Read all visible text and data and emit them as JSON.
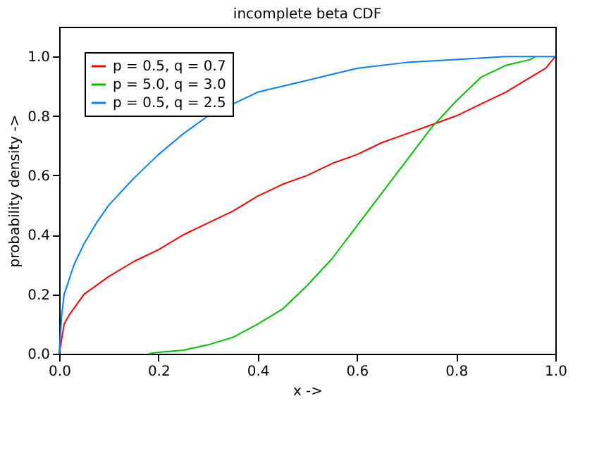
{
  "chart_data": {
    "type": "line",
    "title": "incomplete beta CDF",
    "xlabel": "x ->",
    "ylabel": "probability density ->",
    "xlim": [
      0,
      1
    ],
    "ylim": [
      0,
      1.1
    ],
    "xticks": [
      {
        "value": 0,
        "label": "0.0"
      },
      0.2,
      0.4,
      0.6,
      0.8,
      {
        "value": 1,
        "label": "1.0"
      }
    ],
    "yticks": [
      {
        "value": 0,
        "label": "0.0"
      },
      0.2,
      0.4,
      0.6,
      0.8,
      {
        "value": 1,
        "label": "1.0"
      }
    ],
    "grid": false,
    "legend": "top left",
    "marker": "none",
    "line_style": "solid",
    "series": [
      {
        "name": "p = 0.5, q = 0.7",
        "color": "#ff0000",
        "x": [
          0,
          0.01,
          0.02,
          0.05,
          0.1,
          0.15,
          0.2,
          0.25,
          0.3,
          0.35,
          0.4,
          0.45,
          0.5,
          0.55,
          0.6,
          0.65,
          0.7,
          0.75,
          0.8,
          0.85,
          0.9,
          0.95,
          0.98,
          1
        ],
        "values": [
          0,
          0.1,
          0.13,
          0.2,
          0.26,
          0.31,
          0.35,
          0.4,
          0.44,
          0.48,
          0.53,
          0.57,
          0.6,
          0.64,
          0.67,
          0.71,
          0.74,
          0.77,
          0.8,
          0.84,
          0.88,
          0.93,
          0.96,
          1
        ]
      },
      {
        "name": "p = 5.0, q = 3.0",
        "color": "#00c000",
        "x": [
          0.18,
          0.2,
          0.25,
          0.3,
          0.35,
          0.4,
          0.45,
          0.5,
          0.55,
          0.6,
          0.65,
          0.7,
          0.75,
          0.8,
          0.85,
          0.9,
          0.95,
          0.96
        ],
        "values": [
          0,
          0.005,
          0.012,
          0.03,
          0.055,
          0.1,
          0.15,
          0.23,
          0.32,
          0.43,
          0.54,
          0.65,
          0.76,
          0.85,
          0.93,
          0.97,
          0.99,
          1
        ]
      },
      {
        "name": "p = 0.5, q = 2.5",
        "color": "#0080ff",
        "x": [
          0,
          0.005,
          0.01,
          0.02,
          0.03,
          0.05,
          0.075,
          0.1,
          0.15,
          0.2,
          0.25,
          0.3,
          0.35,
          0.4,
          0.5,
          0.6,
          0.7,
          0.8,
          0.9,
          1
        ],
        "values": [
          0,
          0.13,
          0.2,
          0.25,
          0.3,
          0.37,
          0.44,
          0.5,
          0.59,
          0.67,
          0.74,
          0.8,
          0.84,
          0.88,
          0.92,
          0.96,
          0.98,
          0.99,
          1,
          1
        ]
      }
    ]
  }
}
